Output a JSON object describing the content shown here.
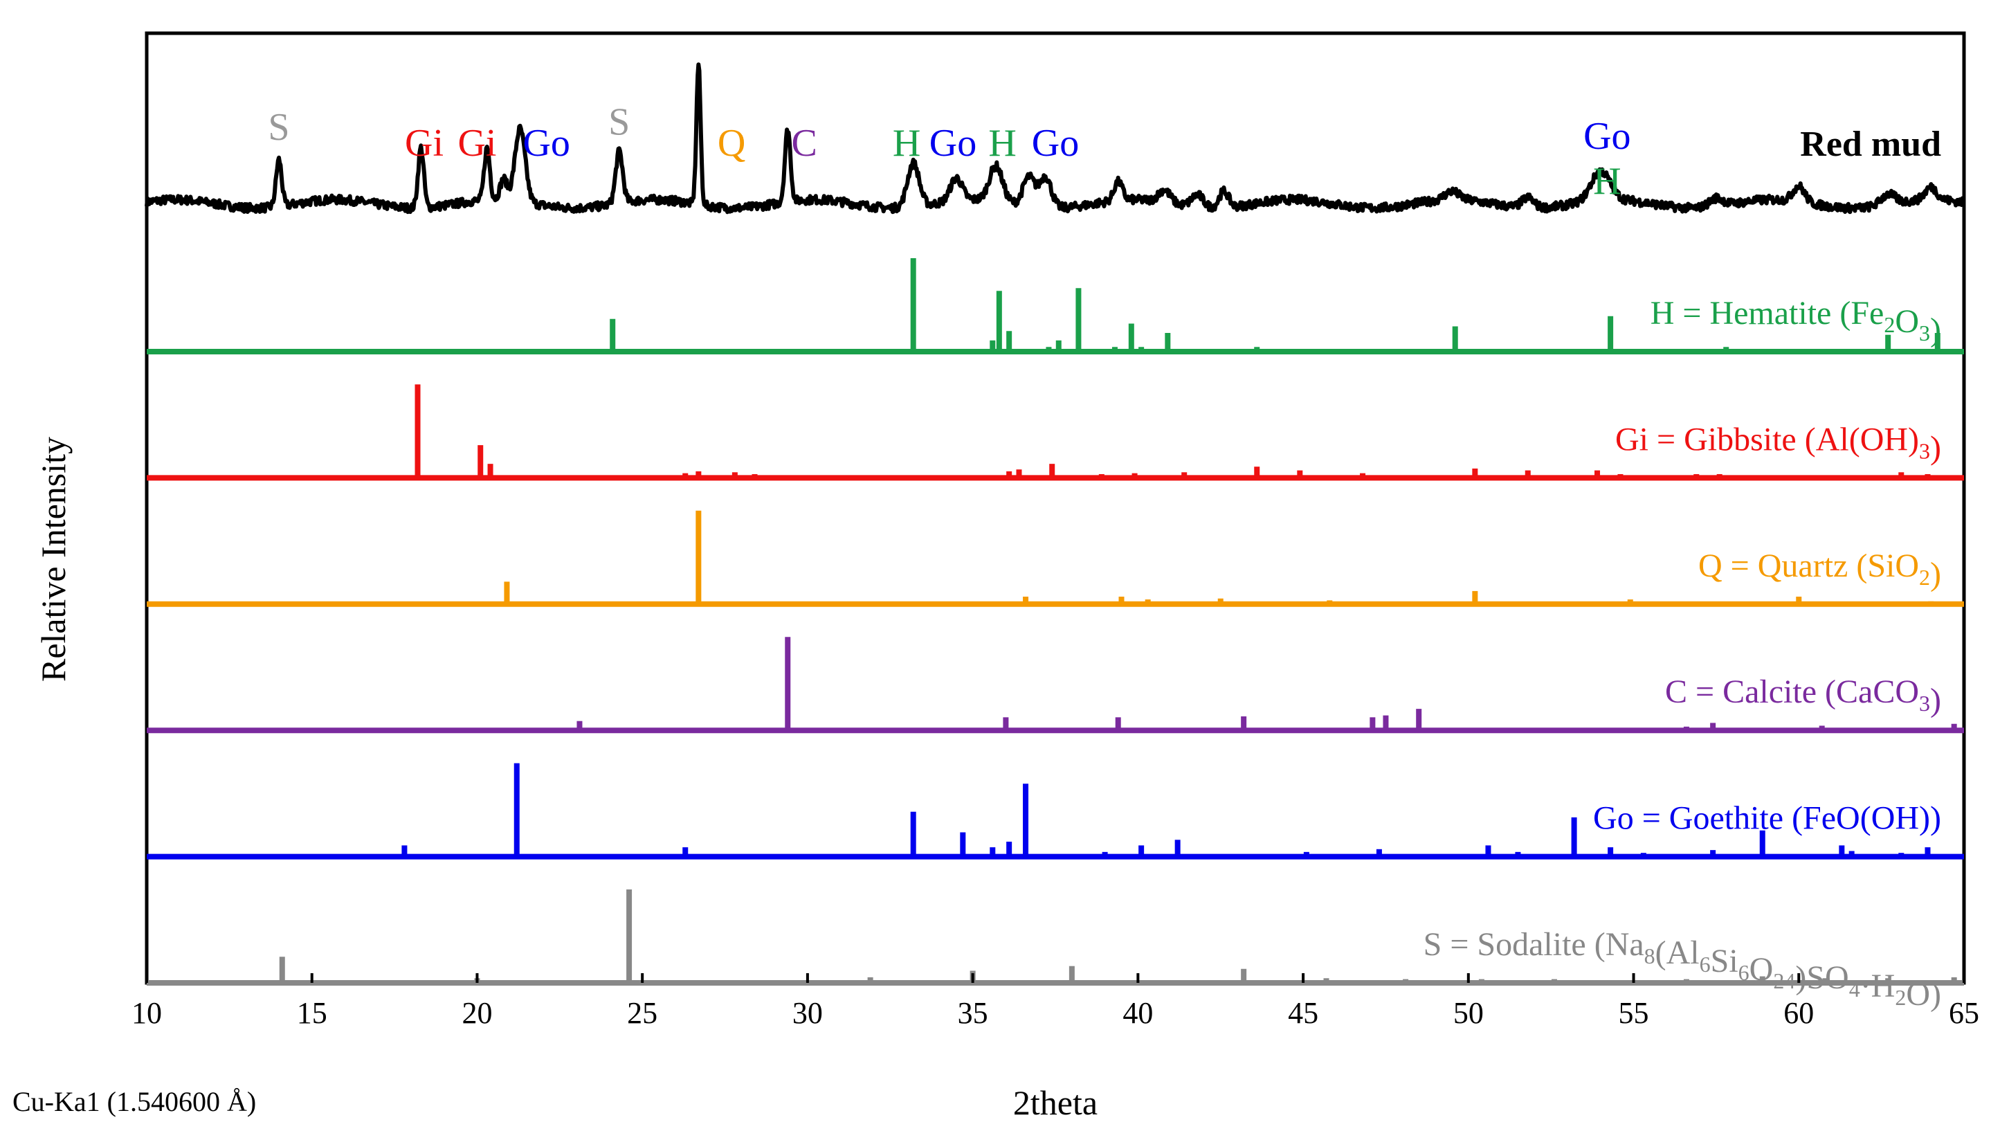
{
  "chart_data": {
    "type": "line",
    "title": "",
    "xlabel": "2theta",
    "ylabel": "Relative Intensity",
    "xlim": [
      10,
      65
    ],
    "xticks": [
      10,
      15,
      20,
      25,
      30,
      35,
      40,
      45,
      50,
      55,
      60,
      65
    ],
    "radiation_note": "Cu-Ka1 (1.540600 Å)",
    "legend_position": "right of each trace",
    "measured": {
      "name": "Red mud",
      "color": "#000000",
      "baseline": 0.05,
      "peaks": [
        {
          "x": 14.0,
          "h": 0.45,
          "w": 0.12
        },
        {
          "x": 18.3,
          "h": 0.58,
          "w": 0.12
        },
        {
          "x": 20.3,
          "h": 0.5,
          "w": 0.12
        },
        {
          "x": 20.8,
          "h": 0.2,
          "w": 0.15
        },
        {
          "x": 21.3,
          "h": 0.7,
          "w": 0.22
        },
        {
          "x": 24.3,
          "h": 0.5,
          "w": 0.15
        },
        {
          "x": 26.7,
          "h": 1.35,
          "w": 0.09
        },
        {
          "x": 29.4,
          "h": 0.7,
          "w": 0.12
        },
        {
          "x": 33.2,
          "h": 0.42,
          "w": 0.25
        },
        {
          "x": 34.5,
          "h": 0.22,
          "w": 0.25
        },
        {
          "x": 35.7,
          "h": 0.34,
          "w": 0.28
        },
        {
          "x": 36.7,
          "h": 0.28,
          "w": 0.25
        },
        {
          "x": 37.2,
          "h": 0.3,
          "w": 0.25
        },
        {
          "x": 39.4,
          "h": 0.18,
          "w": 0.18
        },
        {
          "x": 40.8,
          "h": 0.12,
          "w": 0.25
        },
        {
          "x": 41.8,
          "h": 0.12,
          "w": 0.25
        },
        {
          "x": 42.6,
          "h": 0.16,
          "w": 0.2
        },
        {
          "x": 49.5,
          "h": 0.08,
          "w": 0.3
        },
        {
          "x": 51.8,
          "h": 0.1,
          "w": 0.25
        },
        {
          "x": 54.0,
          "h": 0.28,
          "w": 0.4
        },
        {
          "x": 57.5,
          "h": 0.08,
          "w": 0.3
        },
        {
          "x": 60.0,
          "h": 0.15,
          "w": 0.25
        },
        {
          "x": 62.7,
          "h": 0.1,
          "w": 0.3
        },
        {
          "x": 64.0,
          "h": 0.12,
          "w": 0.25
        }
      ],
      "annotations": [
        {
          "label": "S",
          "x": 14.0,
          "color": "#999999"
        },
        {
          "label": "Gi",
          "x": 18.4,
          "color": "#ee1111"
        },
        {
          "label": "Gi",
          "x": 20.0,
          "color": "#ee1111"
        },
        {
          "label": "Go",
          "x": 22.1,
          "color": "#0000ee"
        },
        {
          "label": "S",
          "x": 24.3,
          "color": "#999999"
        },
        {
          "label": "Q",
          "x": 27.7,
          "color": "#f59a00"
        },
        {
          "label": "C",
          "x": 29.9,
          "color": "#7a2a9e"
        },
        {
          "label": "H",
          "x": 33.0,
          "color": "#1aa04a"
        },
        {
          "label": "Go",
          "x": 34.4,
          "color": "#0000ee"
        },
        {
          "label": "H",
          "x": 35.9,
          "color": "#1aa04a"
        },
        {
          "label": "Go",
          "x": 37.5,
          "color": "#0000ee"
        },
        {
          "label": "Go",
          "x": 54.2,
          "color": "#0000ee"
        },
        {
          "label": "H",
          "x": 54.2,
          "color": "#1aa04a"
        }
      ]
    },
    "references": [
      {
        "name": "Hematite",
        "label_prefix": "H = Hematite (Fe",
        "label_sub1": "2",
        "label_mid": "O",
        "label_sub2": "3",
        "label_suffix": ")",
        "color": "#1aa04a",
        "sticks": [
          [
            24.1,
            0.35
          ],
          [
            33.2,
            1.0
          ],
          [
            35.6,
            0.12
          ],
          [
            35.8,
            0.65
          ],
          [
            36.1,
            0.22
          ],
          [
            37.3,
            0.05
          ],
          [
            37.6,
            0.12
          ],
          [
            38.2,
            0.68
          ],
          [
            39.3,
            0.05
          ],
          [
            39.8,
            0.3
          ],
          [
            40.1,
            0.05
          ],
          [
            40.9,
            0.2
          ],
          [
            43.6,
            0.05
          ],
          [
            49.6,
            0.27
          ],
          [
            54.3,
            0.38
          ],
          [
            57.8,
            0.05
          ],
          [
            62.7,
            0.18
          ],
          [
            64.2,
            0.2
          ]
        ]
      },
      {
        "name": "Gibbsite",
        "label_prefix": "Gi = Gibbsite (Al(OH)",
        "label_sub1": "3",
        "label_mid": "",
        "label_sub2": "",
        "label_suffix": ")",
        "color": "#ee1111",
        "sticks": [
          [
            18.2,
            1.0
          ],
          [
            20.1,
            0.35
          ],
          [
            20.4,
            0.15
          ],
          [
            26.3,
            0.05
          ],
          [
            26.7,
            0.07
          ],
          [
            27.8,
            0.06
          ],
          [
            28.4,
            0.04
          ],
          [
            36.1,
            0.07
          ],
          [
            36.4,
            0.09
          ],
          [
            37.4,
            0.15
          ],
          [
            38.9,
            0.04
          ],
          [
            39.9,
            0.05
          ],
          [
            41.4,
            0.06
          ],
          [
            43.6,
            0.12
          ],
          [
            44.9,
            0.08
          ],
          [
            46.8,
            0.05
          ],
          [
            50.2,
            0.1
          ],
          [
            51.8,
            0.08
          ],
          [
            53.9,
            0.08
          ],
          [
            54.6,
            0.04
          ],
          [
            56.9,
            0.04
          ],
          [
            57.6,
            0.04
          ],
          [
            63.1,
            0.06
          ],
          [
            63.9,
            0.04
          ]
        ]
      },
      {
        "name": "Quartz",
        "label_prefix": "Q = Quartz (SiO",
        "label_sub1": "2",
        "label_mid": "",
        "label_sub2": "",
        "label_suffix": ")",
        "color": "#f59a00",
        "sticks": [
          [
            20.9,
            0.24
          ],
          [
            26.7,
            1.0
          ],
          [
            36.6,
            0.08
          ],
          [
            39.5,
            0.08
          ],
          [
            40.3,
            0.05
          ],
          [
            42.5,
            0.06
          ],
          [
            45.8,
            0.04
          ],
          [
            50.2,
            0.14
          ],
          [
            54.9,
            0.05
          ],
          [
            60.0,
            0.08
          ],
          [
            64.0,
            0.03
          ]
        ]
      },
      {
        "name": "Calcite",
        "label_prefix": "C = Calcite (CaCO",
        "label_sub1": "3",
        "label_mid": "",
        "label_sub2": "",
        "label_suffix": ")",
        "color": "#7a2a9e",
        "sticks": [
          [
            23.1,
            0.1
          ],
          [
            29.4,
            1.0
          ],
          [
            36.0,
            0.14
          ],
          [
            39.4,
            0.14
          ],
          [
            43.2,
            0.15
          ],
          [
            47.1,
            0.14
          ],
          [
            47.5,
            0.16
          ],
          [
            48.5,
            0.23
          ],
          [
            56.6,
            0.04
          ],
          [
            57.4,
            0.08
          ],
          [
            60.7,
            0.05
          ],
          [
            64.7,
            0.07
          ]
        ]
      },
      {
        "name": "Goethite",
        "label_prefix": "Go = Goethite (FeO(OH))",
        "label_sub1": "",
        "label_mid": "",
        "label_sub2": "",
        "label_suffix": "",
        "color": "#0000ee",
        "sticks": [
          [
            17.8,
            0.12
          ],
          [
            21.2,
            1.0
          ],
          [
            26.3,
            0.1
          ],
          [
            33.2,
            0.48
          ],
          [
            34.7,
            0.26
          ],
          [
            35.6,
            0.1
          ],
          [
            36.1,
            0.16
          ],
          [
            36.6,
            0.78
          ],
          [
            39.0,
            0.05
          ],
          [
            40.1,
            0.12
          ],
          [
            41.2,
            0.18
          ],
          [
            45.1,
            0.05
          ],
          [
            47.3,
            0.08
          ],
          [
            50.6,
            0.12
          ],
          [
            51.5,
            0.05
          ],
          [
            53.2,
            0.42
          ],
          [
            54.3,
            0.1
          ],
          [
            55.3,
            0.04
          ],
          [
            57.4,
            0.07
          ],
          [
            58.9,
            0.28
          ],
          [
            61.3,
            0.12
          ],
          [
            61.6,
            0.06
          ],
          [
            63.1,
            0.04
          ],
          [
            63.9,
            0.1
          ]
        ]
      },
      {
        "name": "Sodalite",
        "label_prefix": "S = Sodalite (Na",
        "label_sub1": "8",
        "label_mid": "(Al",
        "label_sub2": "6",
        "label_mid2": "Si",
        "label_sub3": "6",
        "label_mid3": "O",
        "label_sub4": "24",
        "label_suffix": ")SO",
        "label_sub5": "4",
        "label_suffix2": "·H",
        "label_sub6": "2",
        "label_suffix3": "O)",
        "color": "#888888",
        "sticks": [
          [
            14.1,
            0.28
          ],
          [
            20.0,
            0.05
          ],
          [
            24.6,
            1.0
          ],
          [
            31.9,
            0.06
          ],
          [
            35.0,
            0.13
          ],
          [
            38.0,
            0.18
          ],
          [
            43.2,
            0.15
          ],
          [
            45.7,
            0.05
          ],
          [
            48.1,
            0.04
          ],
          [
            50.4,
            0.04
          ],
          [
            52.6,
            0.04
          ],
          [
            56.6,
            0.04
          ],
          [
            58.9,
            0.07
          ],
          [
            60.8,
            0.05
          ],
          [
            62.7,
            0.05
          ],
          [
            64.7,
            0.06
          ]
        ]
      }
    ]
  }
}
